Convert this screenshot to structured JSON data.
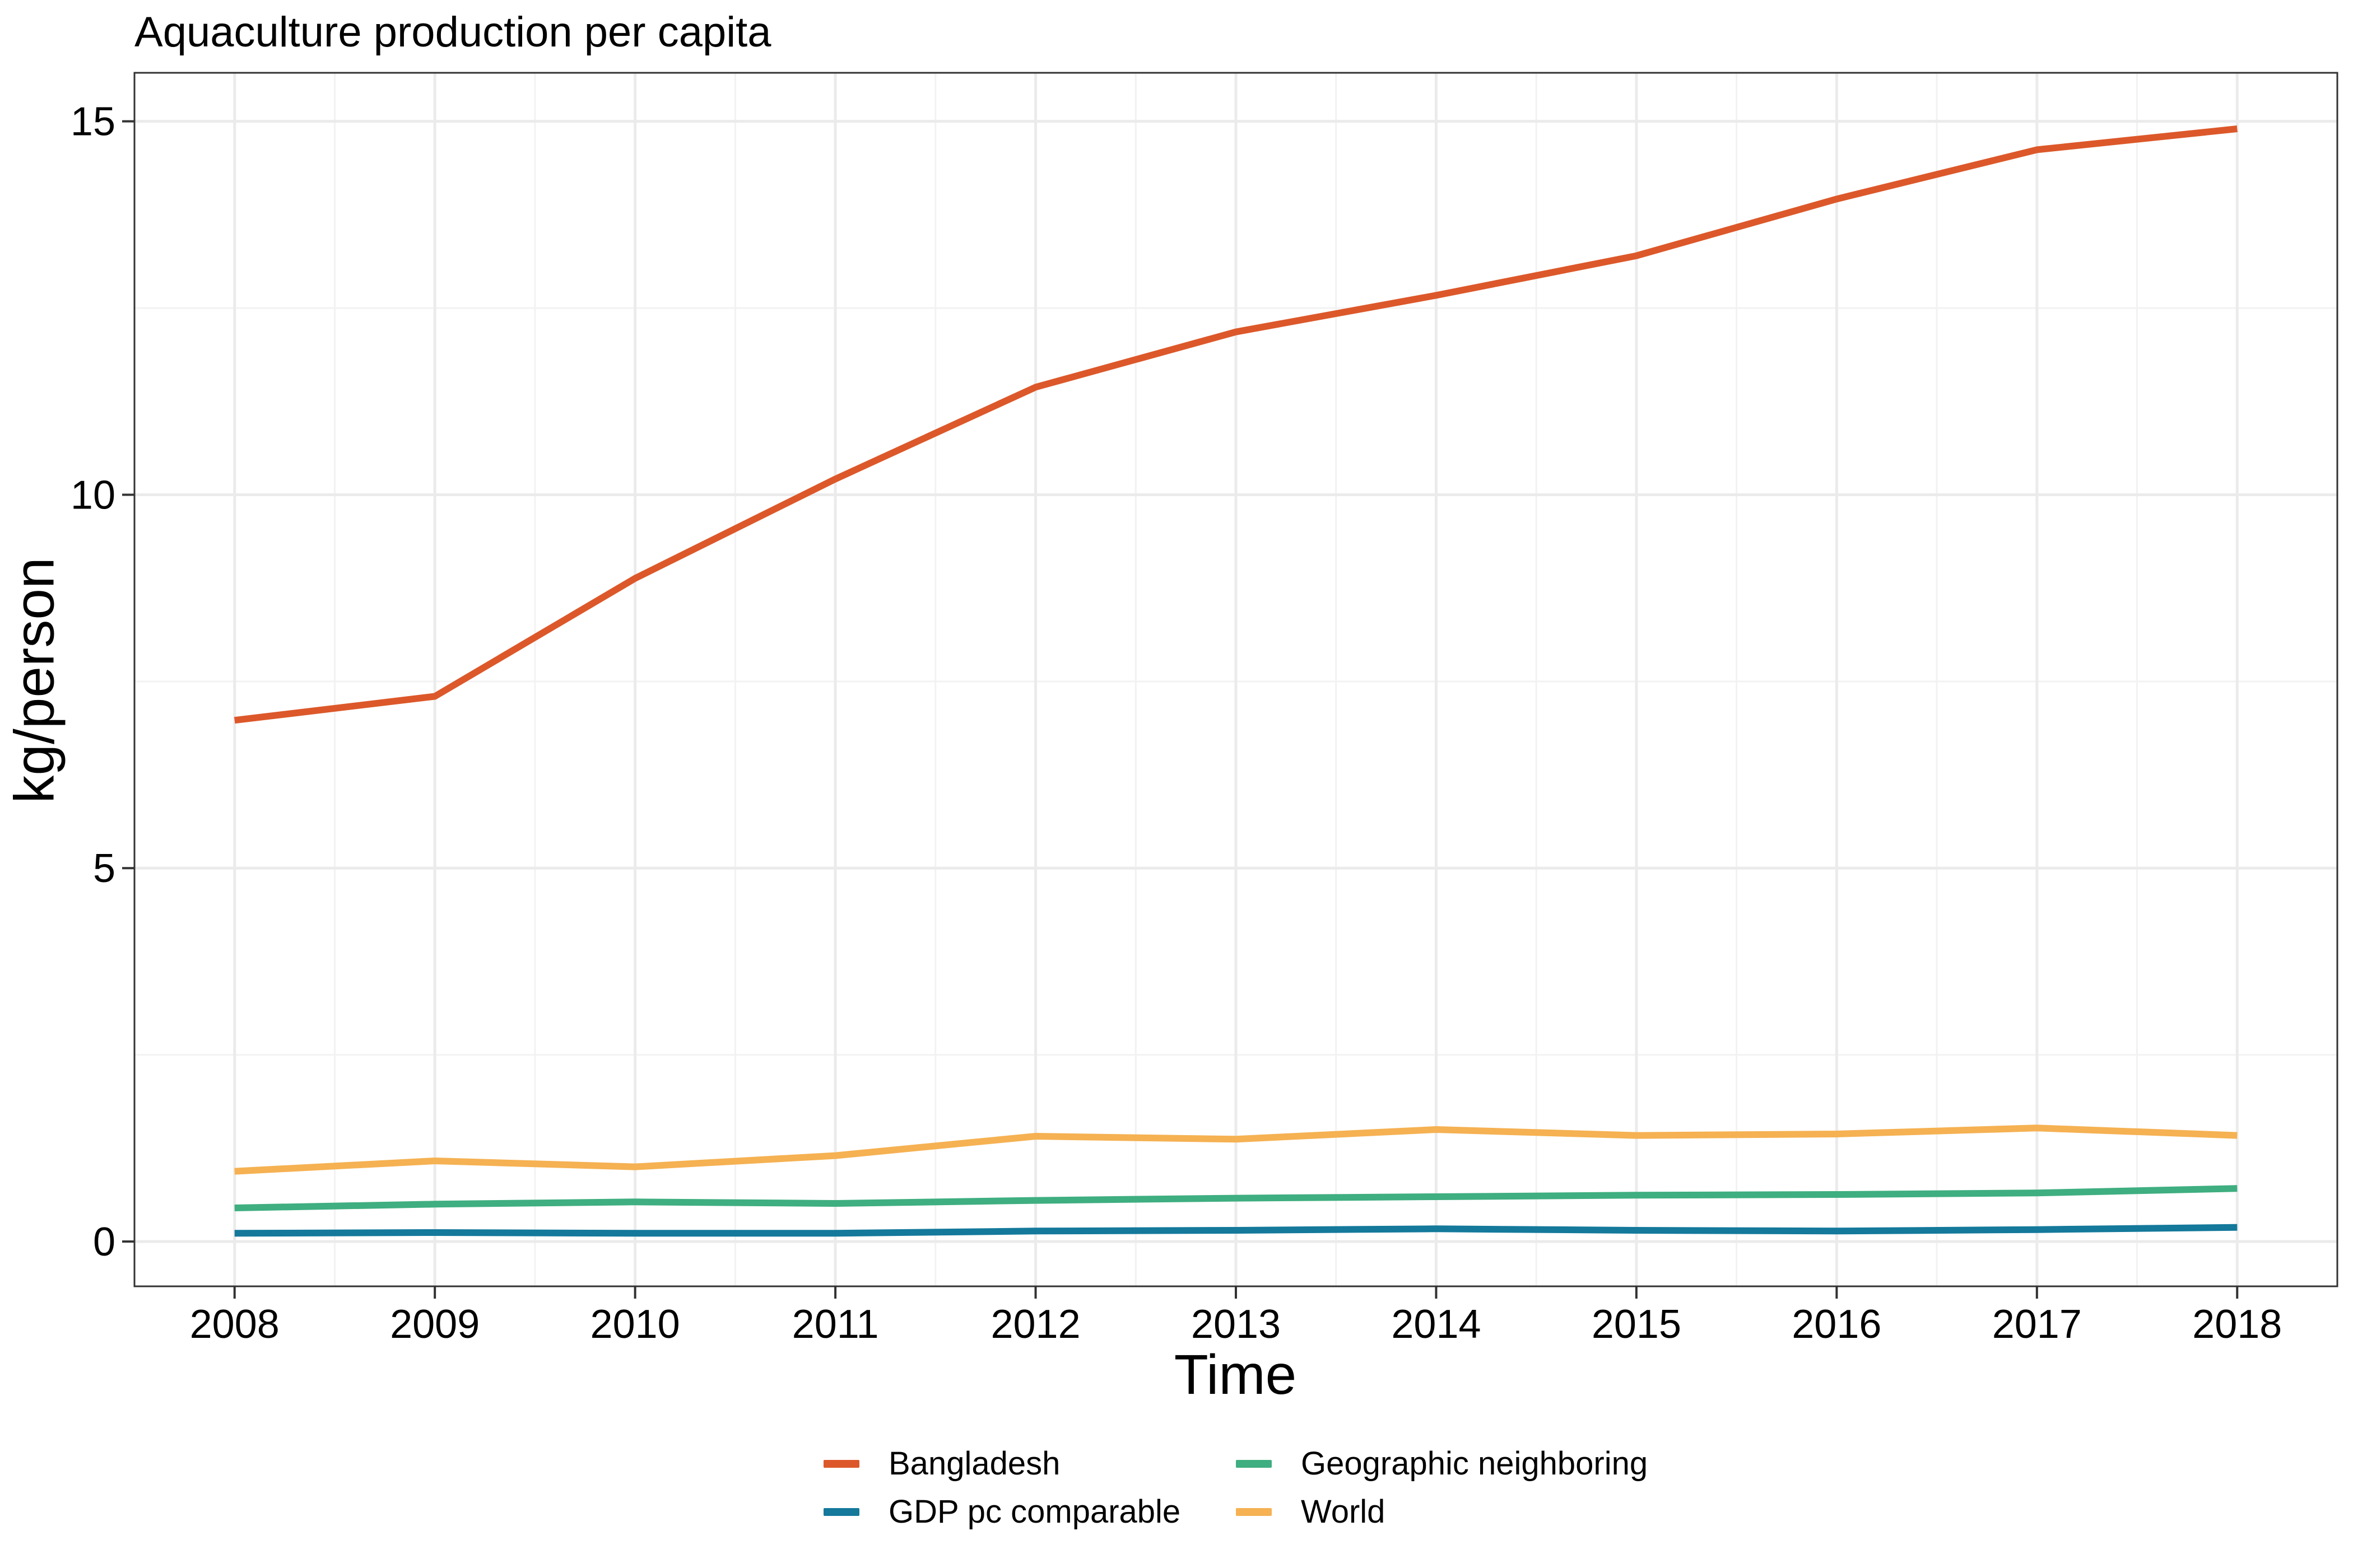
{
  "chart_data": {
    "type": "line",
    "title": "Aquaculture production per capita",
    "xlabel": "Time",
    "ylabel": "kg/person",
    "x": [
      2008,
      2009,
      2010,
      2011,
      2012,
      2013,
      2014,
      2015,
      2016,
      2017,
      2018
    ],
    "x_tick_labels": [
      "2008",
      "2009",
      "2010",
      "2011",
      "2012",
      "2013",
      "2014",
      "2015",
      "2016",
      "2017",
      "2018"
    ],
    "xlim": [
      2007.5,
      2018.5
    ],
    "ylim": [
      -0.6,
      15.65
    ],
    "y_ticks": [
      0,
      5,
      10,
      15
    ],
    "y_tick_labels": [
      "0",
      "5",
      "10",
      "15"
    ],
    "grid": true,
    "legend_position": "bottom",
    "series": [
      {
        "name": "Bangladesh",
        "color": "#dc582a",
        "values": [
          6.98,
          7.3,
          8.88,
          10.21,
          11.44,
          12.18,
          12.67,
          13.2,
          13.96,
          14.62,
          14.9
        ]
      },
      {
        "name": "GDP pc comparable",
        "color": "#14799b",
        "values": [
          0.11,
          0.12,
          0.11,
          0.11,
          0.14,
          0.15,
          0.17,
          0.15,
          0.14,
          0.16,
          0.19
        ]
      },
      {
        "name": "Geographic neighboring",
        "color": "#3fae80",
        "values": [
          0.45,
          0.5,
          0.53,
          0.51,
          0.55,
          0.58,
          0.6,
          0.62,
          0.63,
          0.65,
          0.71
        ]
      },
      {
        "name": "World",
        "color": "#f5b152",
        "values": [
          0.94,
          1.08,
          1.0,
          1.15,
          1.41,
          1.37,
          1.5,
          1.42,
          1.44,
          1.52,
          1.42
        ]
      }
    ]
  }
}
